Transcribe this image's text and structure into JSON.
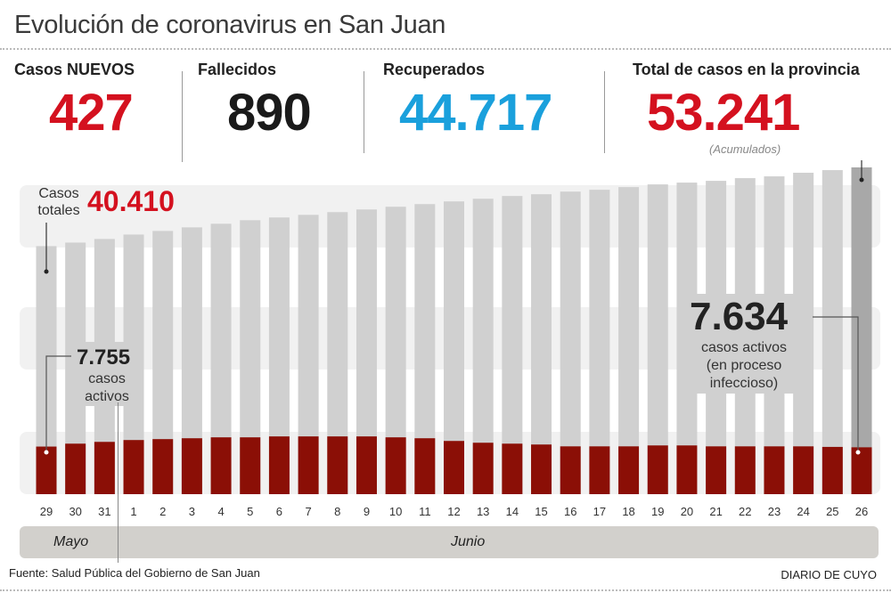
{
  "header": {
    "title": "Evolución de coronavirus en San Juan"
  },
  "stats": [
    {
      "label": "Casos NUEVOS",
      "value": "427",
      "color": "#d4111f"
    },
    {
      "label": "Fallecidos",
      "value": "890",
      "color": "#1a1a1a"
    },
    {
      "label": "Recuperados",
      "value": "44.717",
      "color": "#1aa0dc"
    },
    {
      "label": "Total de casos en la provincia",
      "value": "53.241",
      "note": "(Acumulados)",
      "color": "#d4111f"
    }
  ],
  "annotations": {
    "totals_label": "Casos totales",
    "totals_value": "40.410",
    "start_active_value": "7.755",
    "start_active_label": "casos activos",
    "end_active_value": "7.634",
    "end_active_label_1": "casos activos",
    "end_active_label_2": "(en proceso",
    "end_active_label_3": "infeccioso)"
  },
  "chart_data": {
    "type": "bar",
    "stacked_overlay": true,
    "categories": [
      "29",
      "30",
      "31",
      "1",
      "2",
      "3",
      "4",
      "5",
      "6",
      "7",
      "8",
      "9",
      "10",
      "11",
      "12",
      "13",
      "14",
      "15",
      "16",
      "17",
      "18",
      "19",
      "20",
      "21",
      "22",
      "23",
      "24",
      "25",
      "26"
    ],
    "months": [
      {
        "label": "Mayo",
        "from": "29",
        "to": "31"
      },
      {
        "label": "Junio",
        "from": "1",
        "to": "26"
      }
    ],
    "series": [
      {
        "name": "Casos totales",
        "color": "#d0d0d0",
        "highlight_last_color": "#a8a8a8",
        "values": [
          40410,
          40990,
          41580,
          42300,
          42890,
          43470,
          44060,
          44640,
          45080,
          45510,
          45950,
          46390,
          46830,
          47260,
          47700,
          48140,
          48580,
          48870,
          49300,
          49600,
          50030,
          50470,
          50760,
          51050,
          51490,
          51780,
          52370,
          52800,
          53241
        ]
      },
      {
        "name": "casos activos",
        "color": "#8b0f06",
        "values": [
          7755,
          8230,
          8520,
          8820,
          8970,
          9110,
          9260,
          9260,
          9410,
          9410,
          9410,
          9410,
          9260,
          9110,
          8670,
          8380,
          8230,
          8090,
          7790,
          7790,
          7790,
          7940,
          7940,
          7790,
          7790,
          7790,
          7790,
          7700,
          7634
        ]
      }
    ],
    "ylim": [
      0,
      53241
    ],
    "grid": false
  },
  "footer": {
    "source": "Fuente: Salud Pública del Gobierno de San Juan",
    "brand": "DIARIO DE CUYO"
  }
}
